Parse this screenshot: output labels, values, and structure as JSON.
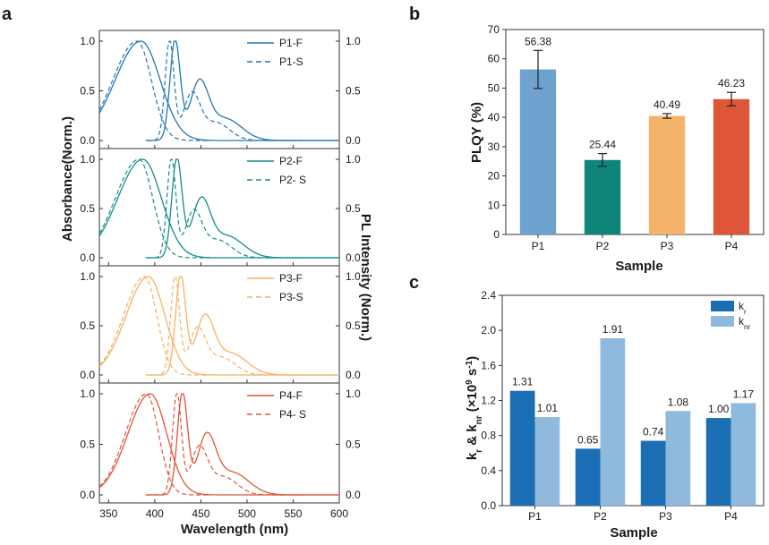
{
  "panel_labels": {
    "a": "a",
    "b": "b",
    "c": "c"
  },
  "chart_data": [
    {
      "id": "a",
      "type": "line",
      "xlabel": "Wavelength (nm)",
      "ylabel_left": "Absorbance(Norm.)",
      "ylabel_right": "PL Intensity (Norm.)",
      "xlim": [
        340,
        600
      ],
      "ylim": [
        0,
        1.1
      ],
      "x_ticks": [
        "350",
        "400",
        "450",
        "500",
        "550",
        "600"
      ],
      "y_ticks": [
        "0.0",
        "0.5",
        "1.0"
      ],
      "panels": [
        {
          "name": "P1",
          "color": "#1f77b4",
          "abs_peak": 385,
          "abs_width": 28,
          "pl_peak": 422,
          "pl_shoulder": 448,
          "legend": [
            "P1-F",
            "P1-S"
          ]
        },
        {
          "name": "P2",
          "color": "#138d8a",
          "abs_peak": 387,
          "abs_width": 27,
          "pl_peak": 424,
          "pl_shoulder": 450,
          "legend": [
            "P2-F",
            "P2- S"
          ]
        },
        {
          "name": "P3",
          "color": "#f2b266",
          "abs_peak": 393,
          "abs_width": 24,
          "pl_peak": 428,
          "pl_shoulder": 454,
          "legend": [
            "P3-F",
            "P3-S"
          ]
        },
        {
          "name": "P4",
          "color": "#e0553a",
          "abs_peak": 395,
          "abs_width": 24,
          "pl_peak": 430,
          "pl_shoulder": 456,
          "legend": [
            "P4-F",
            "P4- S"
          ]
        }
      ]
    },
    {
      "id": "b",
      "type": "bar",
      "xlabel": "Sample",
      "ylabel": "PLQY (%)",
      "ylim": [
        0,
        70
      ],
      "y_ticks": [
        "0",
        "10",
        "20",
        "30",
        "40",
        "50",
        "60",
        "70"
      ],
      "categories": [
        "P1",
        "P2",
        "P3",
        "P4"
      ],
      "values": [
        56.38,
        25.44,
        40.49,
        46.23
      ],
      "value_labels": [
        "56.38",
        "25.44",
        "40.49",
        "46.23"
      ],
      "errors": [
        6.5,
        2.2,
        0.8,
        2.3
      ],
      "colors": [
        "#6fa3cf",
        "#0f8479",
        "#f4b26b",
        "#de5637"
      ]
    },
    {
      "id": "c",
      "type": "bar",
      "xlabel": "Sample",
      "ylabel": "kr & knr (×10⁹ s⁻¹)",
      "ylabel_parts": {
        "k1": "k",
        "r": "r",
        "amp": " & k",
        "nr": "nr",
        "unit_open": " (×10",
        "exp": "9",
        "unit_s": " s",
        "exp2": "-1",
        "close": ")"
      },
      "ylim": [
        0,
        2.4
      ],
      "y_ticks": [
        "0.0",
        "0.4",
        "0.8",
        "1.2",
        "1.6",
        "2.0",
        "2.4"
      ],
      "categories": [
        "P1",
        "P2",
        "P3",
        "P4"
      ],
      "series": [
        {
          "name": "kr",
          "sub": "r",
          "color": "#1c6eb4",
          "values": [
            1.31,
            0.65,
            0.74,
            1.0
          ],
          "labels": [
            "1.31",
            "0.65",
            "0.74",
            "1.00"
          ]
        },
        {
          "name": "knr",
          "sub": "nr",
          "color": "#8fb9dd",
          "values": [
            1.01,
            1.91,
            1.08,
            1.17
          ],
          "labels": [
            "1.01",
            "1.91",
            "1.08",
            "1.17"
          ]
        }
      ],
      "legend_k": "k"
    }
  ]
}
